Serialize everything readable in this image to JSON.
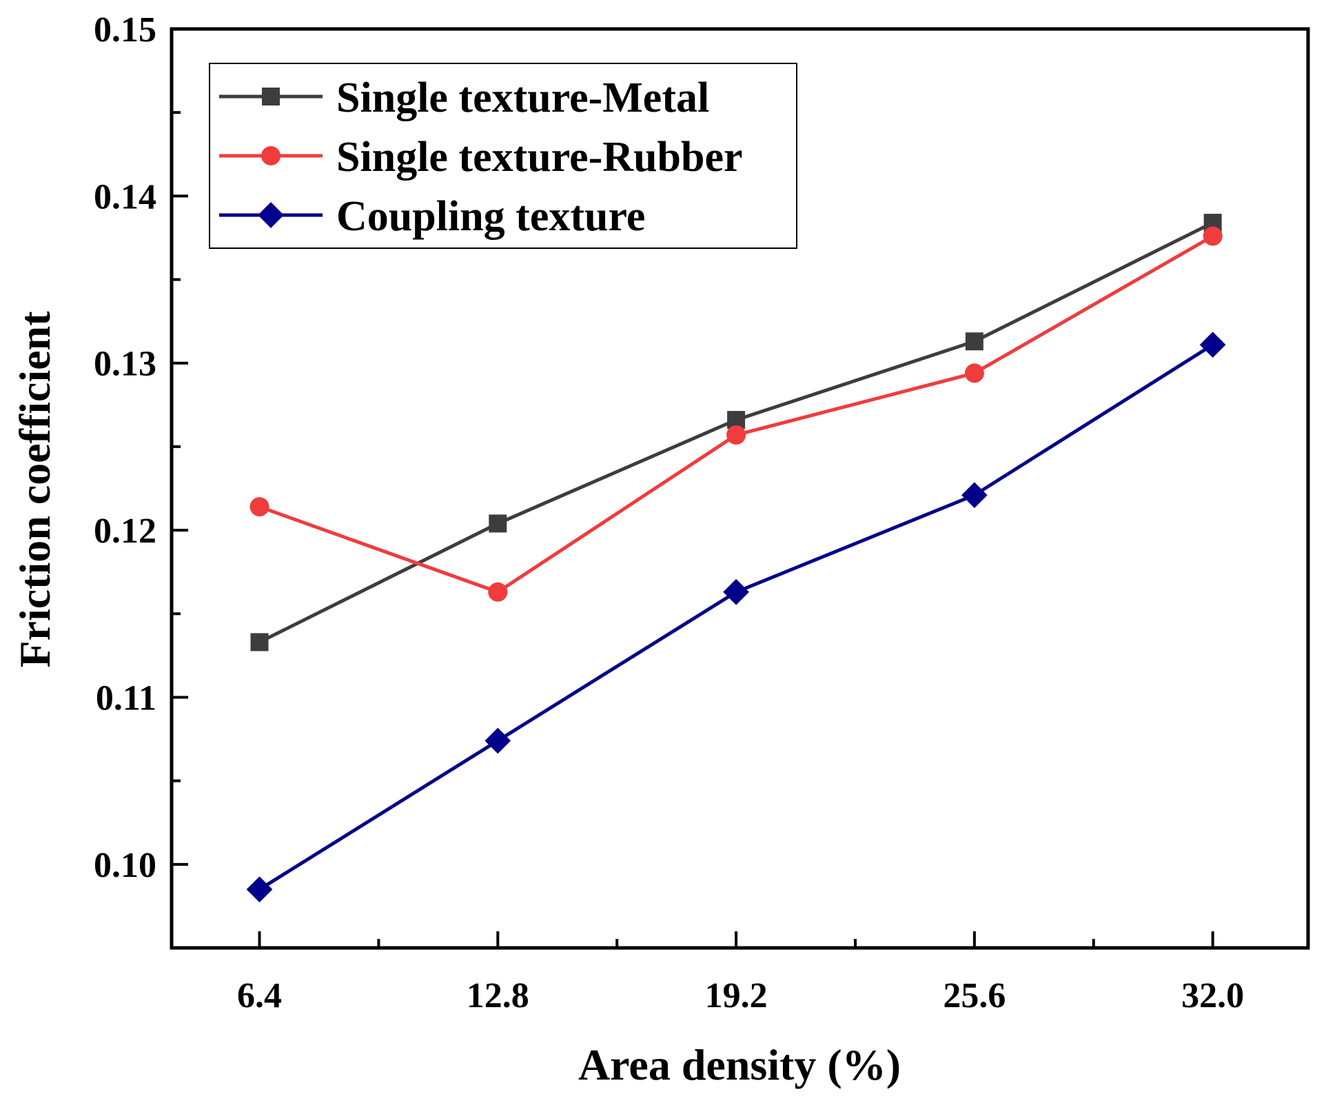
{
  "chart_data": {
    "type": "line",
    "title": "",
    "xlabel": "Area density (%)",
    "ylabel": "Friction coefficient",
    "categories": [
      "6.4",
      "12.8",
      "19.2",
      "25.6",
      "32.0"
    ],
    "x": [
      6.4,
      12.8,
      19.2,
      25.6,
      32.0
    ],
    "xlim": [
      4.04,
      34.56
    ],
    "ylim": [
      0.095,
      0.15
    ],
    "yticks": [
      "0.10",
      "0.11",
      "0.12",
      "0.13",
      "0.14",
      "0.15"
    ],
    "ytick_values": [
      0.1,
      0.11,
      0.12,
      0.13,
      0.14,
      0.15
    ],
    "grid": false,
    "legend_position": "top-left",
    "series": [
      {
        "name": "Single texture-Metal",
        "color": "#3d3d3d",
        "marker": "square",
        "values": [
          0.1133,
          0.1204,
          0.1266,
          0.1313,
          0.1384
        ]
      },
      {
        "name": "Single texture-Rubber",
        "color": "#f03c3c",
        "marker": "circle",
        "values": [
          0.1214,
          0.1163,
          0.1257,
          0.1294,
          0.1376
        ]
      },
      {
        "name": "Coupling texture",
        "color": "#00008b",
        "marker": "diamond",
        "values": [
          0.0985,
          0.1074,
          0.1163,
          0.1221,
          0.1311
        ]
      }
    ]
  }
}
